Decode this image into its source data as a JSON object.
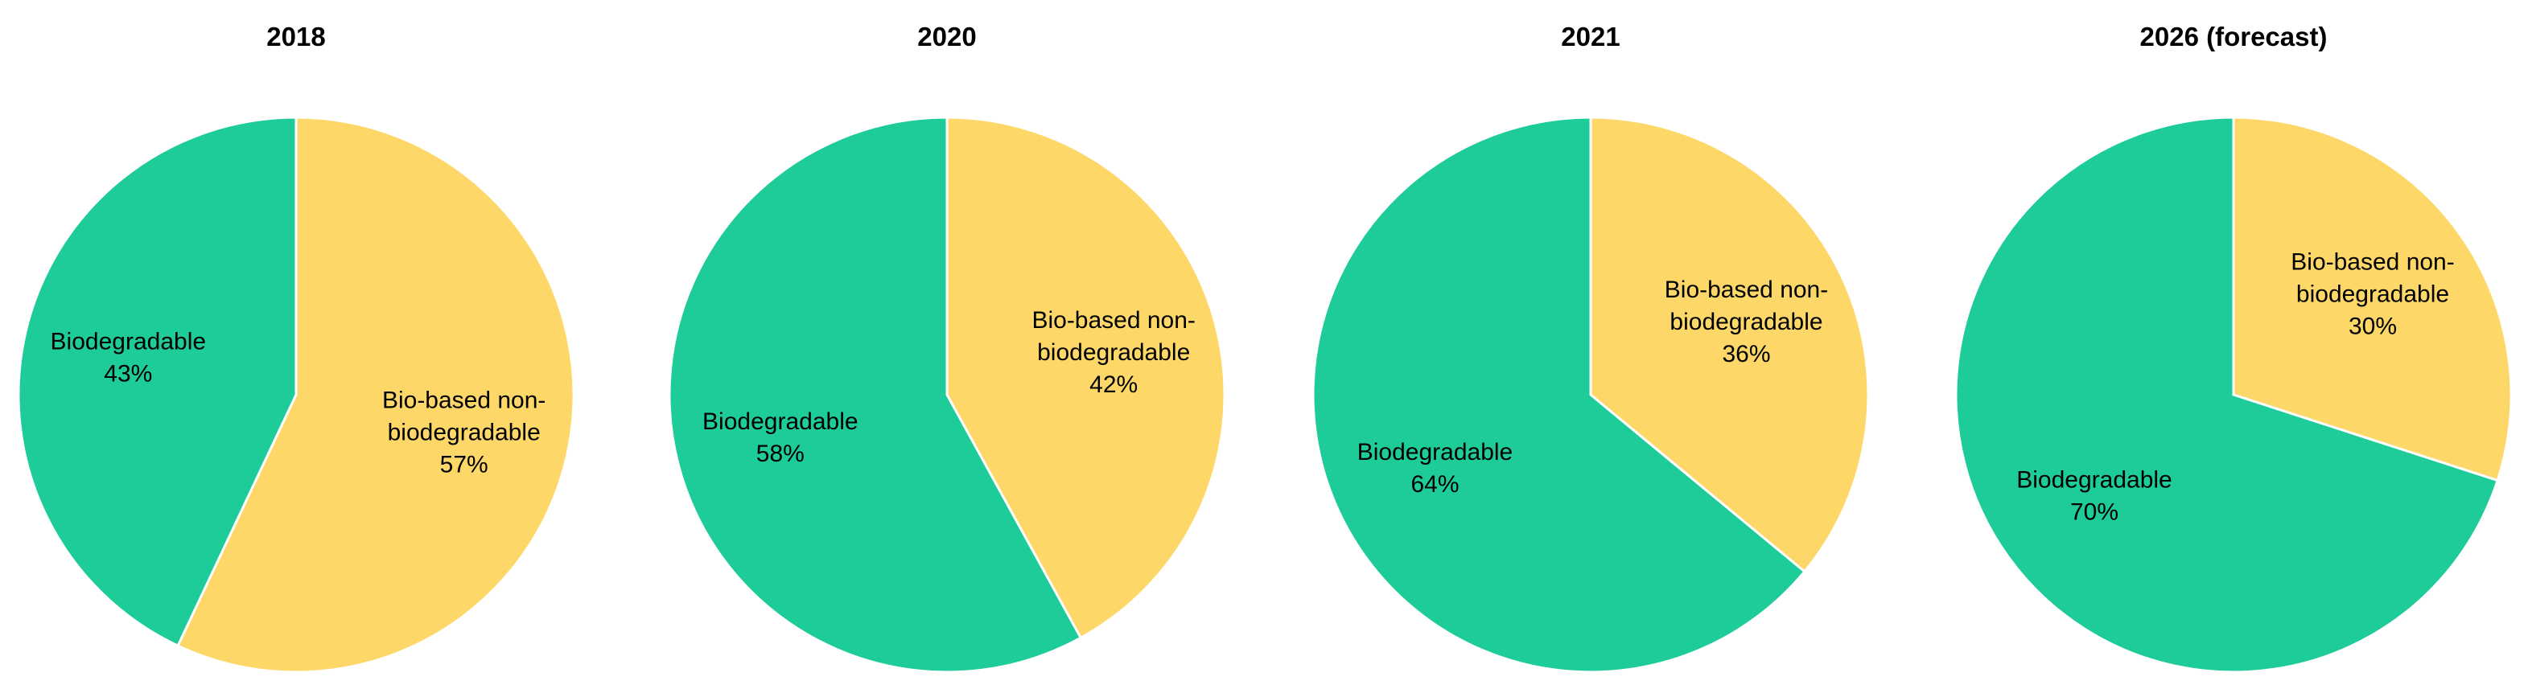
{
  "chart_data": [
    {
      "type": "pie",
      "title": "2018",
      "slices": [
        {
          "label_lines": [
            "Bio-based non-",
            "biodegradable"
          ],
          "value_label": "57%",
          "value": 57,
          "color": "#FDD868"
        },
        {
          "label_lines": [
            "Biodegradable"
          ],
          "value_label": "43%",
          "value": 43,
          "color": "#1DCC98"
        }
      ]
    },
    {
      "type": "pie",
      "title": "2020",
      "slices": [
        {
          "label_lines": [
            "Bio-based non-",
            "biodegradable"
          ],
          "value_label": "42%",
          "value": 42,
          "color": "#FDD868"
        },
        {
          "label_lines": [
            "Biodegradable"
          ],
          "value_label": "58%",
          "value": 58,
          "color": "#1DCC98"
        }
      ]
    },
    {
      "type": "pie",
      "title": "2021",
      "slices": [
        {
          "label_lines": [
            "Bio-based non-",
            "biodegradable"
          ],
          "value_label": "36%",
          "value": 36,
          "color": "#FDD868"
        },
        {
          "label_lines": [
            "Biodegradable"
          ],
          "value_label": "64%",
          "value": 64,
          "color": "#1DCC98"
        }
      ]
    },
    {
      "type": "pie",
      "title": "2026 (forecast)",
      "slices": [
        {
          "label_lines": [
            "Bio-based non-",
            "biodegradable"
          ],
          "value_label": "30%",
          "value": 30,
          "color": "#FDD868"
        },
        {
          "label_lines": [
            "Biodegradable"
          ],
          "value_label": "70%",
          "value": 70,
          "color": "#1DCC98"
        }
      ]
    }
  ]
}
